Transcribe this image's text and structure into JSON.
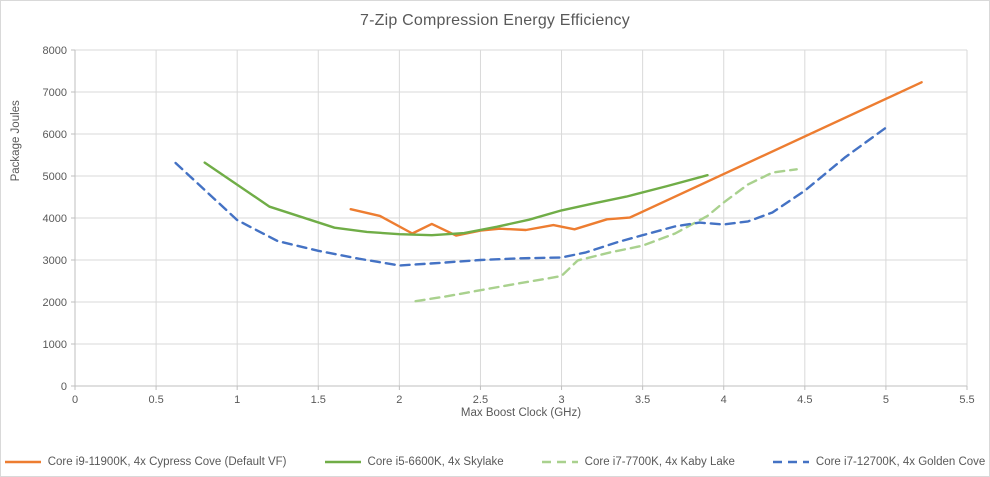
{
  "title": "7-Zip Compression Energy Efficiency",
  "colors": {
    "text": "#595959",
    "gridline": "#d9d9d9",
    "axis_line": "#bfbfbf",
    "background": "#ffffff",
    "series_orange": "#ED7D31",
    "series_green": "#70AD47",
    "series_light_green": "#A9D18E",
    "series_blue": "#4472C4"
  },
  "chart_data": {
    "type": "line",
    "title": "7-Zip Compression Energy Efficiency",
    "xlabel": "Max Boost Clock (GHz)",
    "ylabel": "Package Joules",
    "xlim": [
      0,
      5.5
    ],
    "ylim": [
      0,
      8000
    ],
    "x_ticks": [
      0,
      0.5,
      1,
      1.5,
      2,
      2.5,
      3,
      3.5,
      4,
      4.5,
      5,
      5.5
    ],
    "x_tick_labels": [
      "0",
      "0.5",
      "1",
      "1.5",
      "2",
      "2.5",
      "3",
      "3.5",
      "4",
      "4.5",
      "5",
      "5.5"
    ],
    "y_ticks": [
      0,
      1000,
      2000,
      3000,
      4000,
      5000,
      6000,
      7000,
      8000
    ],
    "y_tick_labels": [
      "0",
      "1000",
      "2000",
      "3000",
      "4000",
      "5000",
      "6000",
      "7000",
      "8000"
    ],
    "grid": true,
    "legend_position": "bottom",
    "series": [
      {
        "name": "Core i9-11900K, 4x Cypress Cove (Default VF)",
        "color": "#ED7D31",
        "dash": "solid",
        "points": [
          [
            1.7,
            4210
          ],
          [
            1.88,
            4050
          ],
          [
            2.08,
            3630
          ],
          [
            2.2,
            3860
          ],
          [
            2.35,
            3580
          ],
          [
            2.5,
            3700
          ],
          [
            2.62,
            3745
          ],
          [
            2.78,
            3715
          ],
          [
            2.95,
            3830
          ],
          [
            3.08,
            3730
          ],
          [
            3.28,
            3970
          ],
          [
            3.42,
            4010
          ],
          [
            5.22,
            7230
          ]
        ]
      },
      {
        "name": "Core i5-6600K, 4x Skylake",
        "color": "#70AD47",
        "dash": "solid",
        "points": [
          [
            0.8,
            5320
          ],
          [
            1.2,
            4270
          ],
          [
            1.6,
            3770
          ],
          [
            1.8,
            3670
          ],
          [
            2.0,
            3615
          ],
          [
            2.2,
            3590
          ],
          [
            2.4,
            3640
          ],
          [
            2.6,
            3790
          ],
          [
            2.8,
            3960
          ],
          [
            3.0,
            4180
          ],
          [
            3.2,
            4350
          ],
          [
            3.4,
            4510
          ],
          [
            3.65,
            4760
          ],
          [
            3.9,
            5020
          ]
        ]
      },
      {
        "name": "Core i7-7700K, 4x Kaby Lake",
        "color": "#A9D18E",
        "dash": "dashed",
        "points": [
          [
            2.1,
            2020
          ],
          [
            2.3,
            2140
          ],
          [
            2.5,
            2280
          ],
          [
            2.7,
            2420
          ],
          [
            2.9,
            2550
          ],
          [
            3.0,
            2620
          ],
          [
            3.1,
            2990
          ],
          [
            3.3,
            3180
          ],
          [
            3.5,
            3340
          ],
          [
            3.7,
            3630
          ],
          [
            3.9,
            4050
          ],
          [
            4.0,
            4370
          ],
          [
            4.15,
            4800
          ],
          [
            4.3,
            5080
          ],
          [
            4.45,
            5160
          ]
        ]
      },
      {
        "name": "Core i7-12700K, 4x Golden Cove",
        "color": "#4472C4",
        "dash": "dashed",
        "points": [
          [
            0.62,
            5310
          ],
          [
            1.0,
            3950
          ],
          [
            1.25,
            3450
          ],
          [
            1.5,
            3220
          ],
          [
            1.75,
            3030
          ],
          [
            2.0,
            2870
          ],
          [
            2.25,
            2930
          ],
          [
            2.5,
            3000
          ],
          [
            2.75,
            3040
          ],
          [
            3.0,
            3060
          ],
          [
            3.15,
            3180
          ],
          [
            3.35,
            3430
          ],
          [
            3.5,
            3590
          ],
          [
            3.7,
            3800
          ],
          [
            3.85,
            3890
          ],
          [
            4.0,
            3845
          ],
          [
            4.15,
            3920
          ],
          [
            4.3,
            4130
          ],
          [
            4.5,
            4650
          ],
          [
            4.75,
            5450
          ],
          [
            5.0,
            6150
          ]
        ]
      }
    ]
  }
}
